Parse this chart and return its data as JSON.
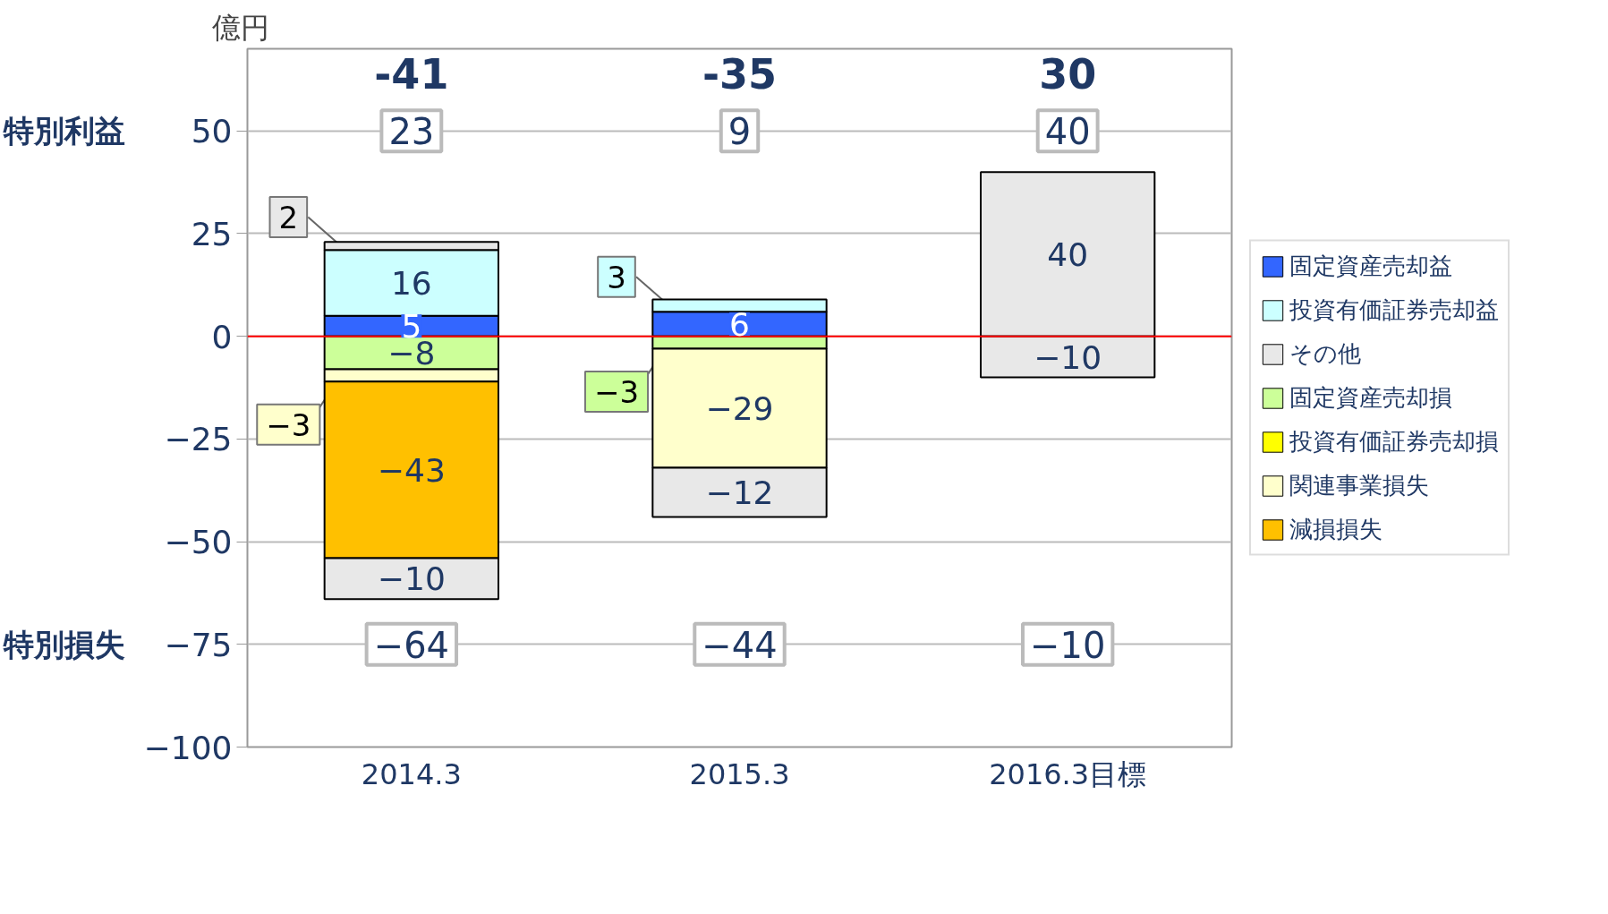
{
  "chart_data": {
    "type": "bar",
    "stacked": true,
    "ylabel": "億円",
    "categories": [
      "2014.3",
      "2015.3",
      "2016.3目標"
    ],
    "ylim": [
      -100,
      70
    ],
    "yticks": [
      {
        "value": -100,
        "label": "−100"
      },
      {
        "value": -75,
        "label": "−75"
      },
      {
        "value": -50,
        "label": "−50"
      },
      {
        "value": -25,
        "label": "−25"
      },
      0,
      25,
      50
    ],
    "grid": "y",
    "legend": "right",
    "series": [
      {
        "name": "固定資産売却益",
        "color": "#3366ff",
        "values": [
          5,
          6,
          null
        ],
        "value_labels": [
          "5",
          "6",
          null
        ]
      },
      {
        "name": "投資有価証券売却益",
        "color": "#ccffff",
        "values": [
          16,
          3,
          null
        ],
        "value_labels": [
          "16",
          "3",
          null
        ]
      },
      {
        "name": "その他",
        "color": "#e8e8e8",
        "values": [
          2,
          null,
          40
        ],
        "value_labels": [
          "2",
          null,
          "40"
        ]
      },
      {
        "name": "固定資産売却損",
        "color": "#ccff99",
        "values": [
          -8,
          -3,
          null
        ],
        "value_labels": [
          "−8",
          "−3",
          null
        ]
      },
      {
        "name": "投資有価証券売却損",
        "color": "#ffff00",
        "values": [
          null,
          null,
          null
        ]
      },
      {
        "name": "関連事業損失",
        "color": "#ffffcc",
        "values": [
          -3,
          -29,
          null
        ],
        "value_labels": [
          "−3",
          "−29",
          null
        ]
      },
      {
        "name": "減損損失",
        "color": "#ffc000",
        "values": [
          -43,
          null,
          null
        ],
        "value_labels": [
          "−43",
          null,
          null
        ]
      },
      {
        "color": "#e8e8e8",
        "values": [
          -10,
          -12,
          -10
        ],
        "value_labels": [
          "−10",
          "−12",
          "−10"
        ]
      }
    ],
    "ref_lines": [
      {
        "axis": "y",
        "value": 0,
        "color": "#ff0000"
      }
    ],
    "annotations": [
      "-41",
      "-35",
      "30",
      "特別利益",
      "23",
      "9",
      "40",
      "特別損失",
      "−64",
      "−44",
      "−10"
    ]
  }
}
